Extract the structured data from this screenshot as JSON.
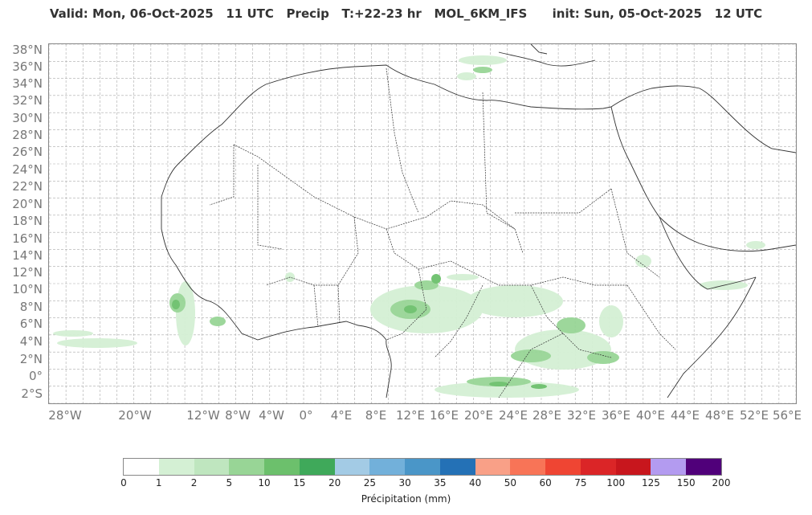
{
  "title": "Valid: Mon, 06-Oct-2025   11 UTC   Precip   T:+22-23 hr   MOL_6KM_IFS      init: Sun, 05-Oct-2025   12 UTC",
  "lat_labels": [
    "38°N",
    "36°N",
    "34°N",
    "32°N",
    "30°N",
    "28°N",
    "26°N",
    "24°N",
    "22°N",
    "20°N",
    "18°N",
    "16°N",
    "14°N",
    "12°N",
    "10°N",
    "8°N",
    "6°N",
    "4°N",
    "2°N",
    "0°",
    "2°S"
  ],
  "lon_labels": [
    "28°W",
    "20°W",
    "12°W",
    "8°W",
    "4°W",
    "0°",
    "4°E",
    "8°E",
    "12°E",
    "16°E",
    "20°E",
    "24°E",
    "28°E",
    "32°E",
    "36°E",
    "40°E",
    "44°E",
    "48°E",
    "52°E",
    "56°E"
  ],
  "colorbar": {
    "title": "Précipitation (mm)",
    "ticks": [
      "0",
      "1",
      "2",
      "5",
      "10",
      "15",
      "20",
      "25",
      "30",
      "35",
      "40",
      "50",
      "60",
      "75",
      "100",
      "125",
      "150",
      "200"
    ],
    "colors": [
      "#ffffff",
      "#d4f0d4",
      "#bfe6bf",
      "#98d596",
      "#6cc06c",
      "#3fa95a",
      "#a3cbe5",
      "#72b0da",
      "#4a96c8",
      "#2471b6",
      "#f9a087",
      "#f87457",
      "#ef4533",
      "#db2527",
      "#c8161d",
      "#b39bf0",
      "#50007a"
    ]
  },
  "map": {
    "coast_color": "#333333",
    "border_color": "#333333",
    "grid_color": "#aaaaaa"
  }
}
